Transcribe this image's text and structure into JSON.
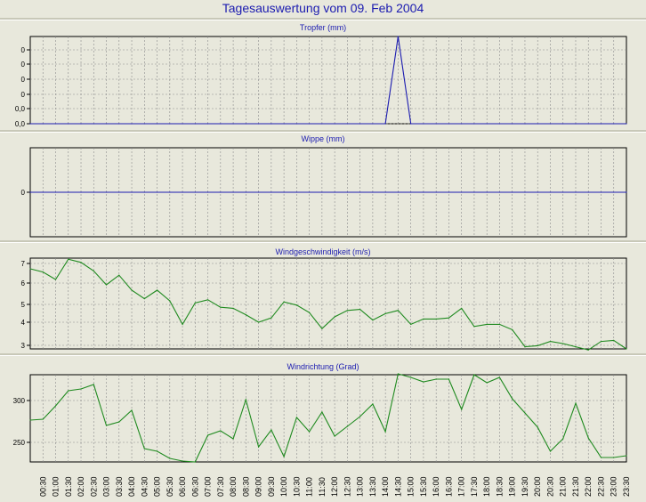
{
  "title": "Tagesauswertung vom 09. Feb 2004",
  "x_labels": [
    "00:30",
    "01:00",
    "01:30",
    "02:00",
    "02:30",
    "03:00",
    "03:30",
    "04:00",
    "04:30",
    "05:00",
    "05:30",
    "06:00",
    "06:30",
    "07:00",
    "07:30",
    "08:00",
    "08:30",
    "09:00",
    "09:30",
    "10:00",
    "10:30",
    "11:00",
    "11:30",
    "12:00",
    "12:30",
    "13:00",
    "13:30",
    "14:00",
    "14:30",
    "15:00",
    "15:30",
    "16:00",
    "16:30",
    "17:00",
    "17:30",
    "18:00",
    "18:30",
    "19:00",
    "19:30",
    "20:00",
    "20:30",
    "21:00",
    "21:30",
    "22:00",
    "22:30",
    "23:00",
    "23:30"
  ],
  "colors": {
    "blue": "#1b1bb0",
    "green": "#1f8a1f",
    "plot_bg": "#e8e8dc",
    "grid": "#8c8c8c"
  },
  "chart_data": [
    {
      "type": "line",
      "title": "Tropfer (mm)",
      "ytick_labels": [
        "0,0",
        "0,0",
        "0",
        "0",
        "0",
        "0"
      ],
      "ylim": [
        0,
        1
      ],
      "series": [
        {
          "color": "blue",
          "values": [
            0,
            0,
            0,
            0,
            0,
            0,
            0,
            0,
            0,
            0,
            0,
            0,
            0,
            0,
            0,
            0,
            0,
            0,
            0,
            0,
            0,
            0,
            0,
            0,
            0,
            0,
            0,
            0,
            0,
            1,
            0,
            0,
            0,
            0,
            0,
            0,
            0,
            0,
            0,
            0,
            0,
            0,
            0,
            0,
            0,
            0,
            0,
            0
          ]
        }
      ]
    },
    {
      "type": "line",
      "title": "Wippe (mm)",
      "ytick_labels": [
        "0"
      ],
      "ylim": [
        -1,
        1
      ],
      "series": [
        {
          "color": "blue",
          "values": [
            0,
            0,
            0,
            0,
            0,
            0,
            0,
            0,
            0,
            0,
            0,
            0,
            0,
            0,
            0,
            0,
            0,
            0,
            0,
            0,
            0,
            0,
            0,
            0,
            0,
            0,
            0,
            0,
            0,
            0,
            0,
            0,
            0,
            0,
            0,
            0,
            0,
            0,
            0,
            0,
            0,
            0,
            0,
            0,
            0,
            0,
            0,
            0
          ]
        }
      ]
    },
    {
      "type": "line",
      "title": "Windgeschwindigkeit (m/s)",
      "ytick_labels": [
        "3",
        "4",
        "5",
        "6",
        "7"
      ],
      "ylim": [
        2.85,
        7.1
      ],
      "series": [
        {
          "color": "green",
          "values": [
            6.6,
            6.45,
            6.1,
            7.05,
            6.9,
            6.5,
            5.85,
            6.3,
            5.6,
            5.2,
            5.6,
            5.1,
            4.0,
            5.0,
            5.15,
            4.8,
            4.75,
            4.45,
            4.1,
            4.3,
            5.05,
            4.9,
            4.55,
            3.8,
            4.35,
            4.65,
            4.7,
            4.2,
            4.5,
            4.65,
            4.0,
            4.25,
            4.25,
            4.3,
            4.75,
            3.9,
            4.0,
            4.0,
            3.75,
            2.95,
            3.0,
            3.2,
            3.1,
            2.95,
            2.8,
            3.2,
            3.25,
            2.85
          ]
        }
      ]
    },
    {
      "type": "line",
      "title": "Windrichtung (Grad)",
      "ytick_labels": [
        "250",
        "300"
      ],
      "ylim": [
        227,
        325
      ],
      "series": [
        {
          "color": "green",
          "values": [
            274,
            275,
            290,
            307,
            309,
            314,
            268,
            272,
            285,
            242,
            239,
            231,
            228,
            227,
            257,
            262,
            253,
            297,
            244,
            263,
            233,
            277,
            261,
            283,
            256,
            267,
            278,
            292,
            261,
            326,
            322,
            317,
            320,
            320,
            286,
            325,
            316,
            322,
            298,
            282,
            266,
            239,
            253,
            293,
            254,
            232,
            232,
            234
          ]
        }
      ]
    }
  ]
}
